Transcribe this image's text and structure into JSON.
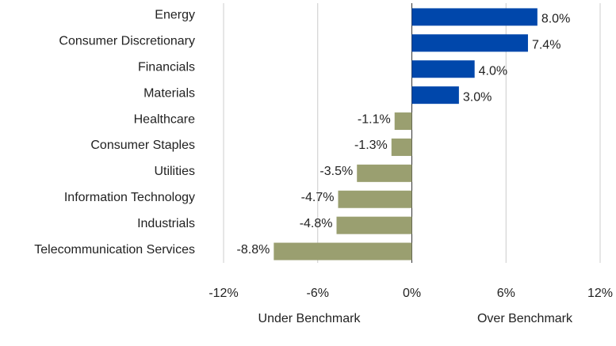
{
  "chart_data": {
    "type": "bar",
    "orientation": "horizontal",
    "categories": [
      "Energy",
      "Consumer Discretionary",
      "Financials",
      "Materials",
      "Healthcare",
      "Consumer Staples",
      "Utilities",
      "Information Technology",
      "Industrials",
      "Telecommunication Services"
    ],
    "values": [
      8.0,
      7.4,
      4.0,
      3.0,
      -1.1,
      -1.3,
      -3.5,
      -4.7,
      -4.8,
      -8.8
    ],
    "value_labels": [
      "8.0%",
      "7.4%",
      "4.0%",
      "3.0%",
      "-1.1%",
      "-1.3%",
      "-3.5%",
      "-4.7%",
      "-4.8%",
      "-8.8%"
    ],
    "colors": [
      "#0047ab",
      "#0047ab",
      "#0047ab",
      "#0047ab",
      "#9a9f70",
      "#9a9f70",
      "#9a9f70",
      "#9a9f70",
      "#9a9f70",
      "#9a9f70"
    ],
    "xlim": [
      -12,
      12
    ],
    "xticks": [
      {
        "value": -12,
        "label": "-12%"
      },
      {
        "value": -6,
        "label": "-6%"
      },
      {
        "value": 0,
        "label": "0%"
      },
      {
        "value": 6,
        "label": "6%"
      },
      {
        "value": 12,
        "label": "12%"
      }
    ],
    "grid": true,
    "annotations": [
      "Under Benchmark",
      "Over Benchmark"
    ]
  }
}
